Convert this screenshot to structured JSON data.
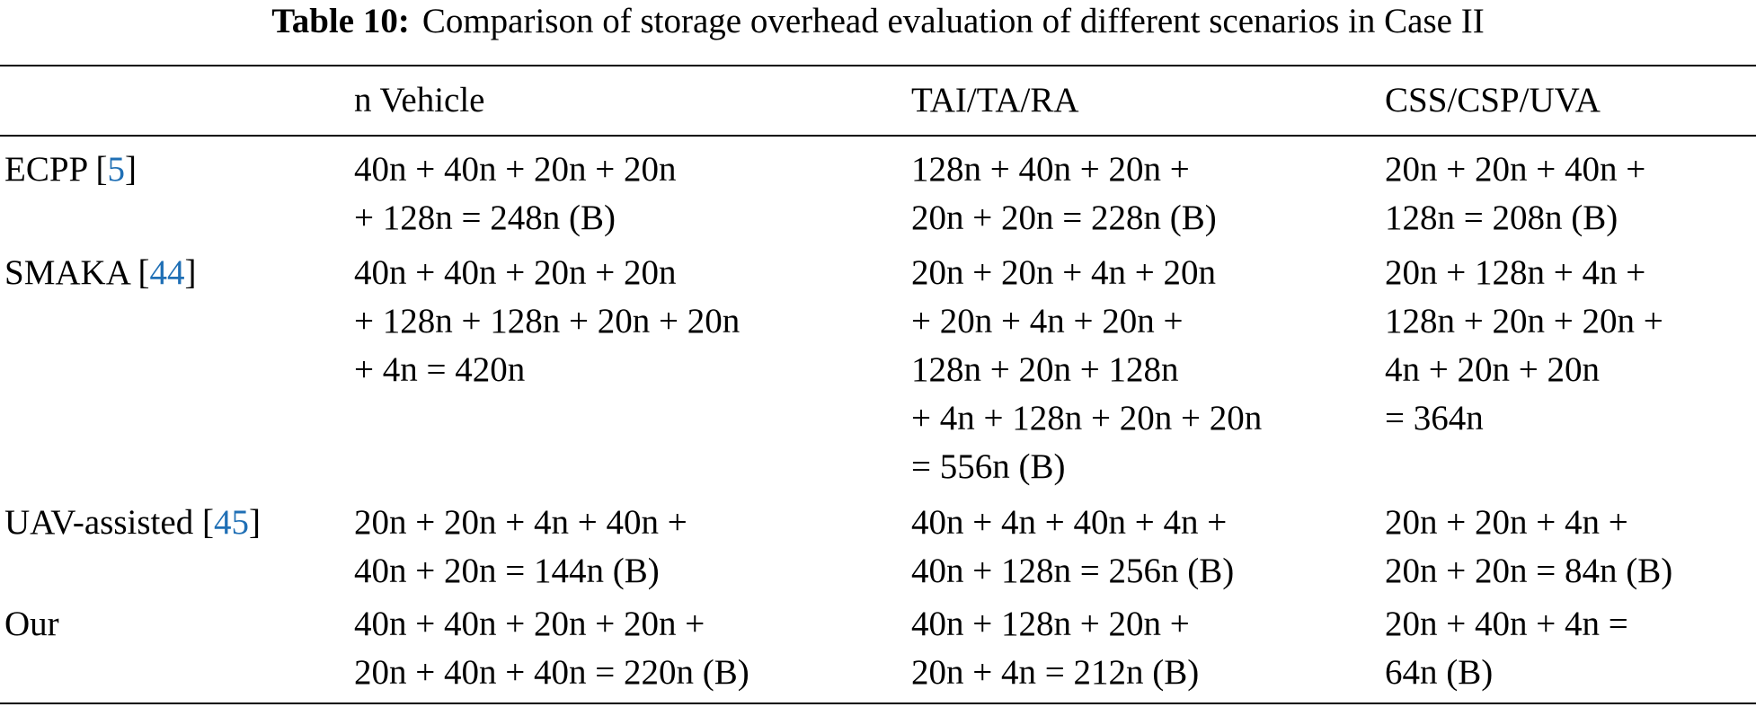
{
  "table": {
    "label": "Table 10:",
    "title": "Comparison of storage overhead evaluation of different scenarios in Case II",
    "headers": [
      "",
      "n Vehicle",
      "TAI/TA/RA",
      "CSS/CSP/UVA"
    ],
    "rows": [
      {
        "scheme": "ECPP",
        "ref": "5",
        "vehicle": [
          "40n + 40n + 20n + 20n",
          "+ 128n = 248n (B)"
        ],
        "tai": [
          "128n + 40n + 20n +",
          "20n + 20n = 228n (B)"
        ],
        "css": [
          "20n + 20n + 40n +",
          "128n = 208n (B)"
        ]
      },
      {
        "scheme": "SMAKA",
        "ref": "44",
        "vehicle": [
          "40n + 40n + 20n + 20n",
          "+ 128n + 128n + 20n + 20n",
          "+ 4n = 420n"
        ],
        "tai": [
          "20n + 20n + 4n + 20n",
          "+ 20n + 4n + 20n +",
          "128n + 20n + 128n",
          "+ 4n + 128n + 20n + 20n",
          "= 556n (B)"
        ],
        "css": [
          "20n + 128n + 4n +",
          "128n + 20n + 20n +",
          "4n + 20n + 20n",
          "= 364n"
        ]
      },
      {
        "scheme": "UAV-assisted",
        "ref": "45",
        "vehicle": [
          "20n + 20n + 4n + 40n +",
          "40n + 20n = 144n (B)"
        ],
        "tai": [
          "40n + 4n + 40n + 4n +",
          "40n + 128n = 256n (B)"
        ],
        "css": [
          "20n + 20n + 4n +",
          "20n + 20n = 84n (B)"
        ]
      },
      {
        "scheme": "Our",
        "ref": "",
        "vehicle": [
          "40n + 40n + 20n + 20n +",
          "20n + 40n + 40n = 220n (B)"
        ],
        "tai": [
          "40n + 128n + 20n +",
          "20n + 4n = 212n (B)"
        ],
        "css": [
          "20n + 40n + 4n =",
          "64n (B)"
        ]
      }
    ]
  }
}
